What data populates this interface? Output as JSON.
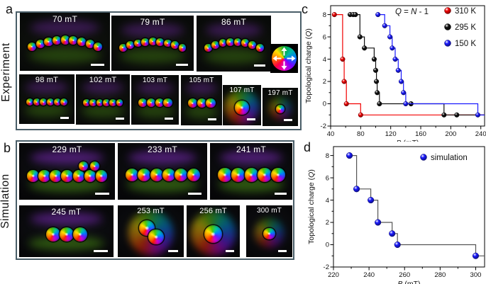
{
  "panels": {
    "a": {
      "letter": "a",
      "side_label": "Experiment",
      "tiles": [
        {
          "field": "70 mT",
          "skyrmions": 9,
          "arrangement": "arc"
        },
        {
          "field": "79 mT",
          "skyrmions": 9,
          "arrangement": "arc"
        },
        {
          "field": "86 mT",
          "skyrmions": 8,
          "arrangement": "arc"
        },
        {
          "field": "98 mT",
          "skyrmions": 6,
          "arrangement": "line"
        },
        {
          "field": "102 mT",
          "skyrmions": 6,
          "arrangement": "line"
        },
        {
          "field": "103 mT",
          "skyrmions": 4,
          "arrangement": "line"
        },
        {
          "field": "105 mT",
          "skyrmions": 3,
          "arrangement": "line"
        },
        {
          "field": "107 mT",
          "skyrmions": 1,
          "arrangement": "single"
        },
        {
          "field": "197 mT",
          "skyrmions": 1,
          "arrangement": "single-small"
        }
      ],
      "color_wheel": {
        "icon": "color-wheel-icon",
        "arrows": [
          "up",
          "right",
          "down",
          "left"
        ]
      }
    },
    "b": {
      "letter": "b",
      "side_label": "Simulation",
      "tiles": [
        {
          "field": "229 mT",
          "skyrmions": 9,
          "arrangement": "line-top2"
        },
        {
          "field": "233 mT",
          "skyrmions": 6,
          "arrangement": "line"
        },
        {
          "field": "241 mT",
          "skyrmions": 5,
          "arrangement": "line"
        },
        {
          "field": "245 mT",
          "skyrmions": 3,
          "arrangement": "line"
        },
        {
          "field": "253 mT",
          "skyrmions": 2,
          "arrangement": "diag"
        },
        {
          "field": "256 mT",
          "skyrmions": 1,
          "arrangement": "single"
        },
        {
          "field": "300 mT",
          "skyrmions": 1,
          "arrangement": "single-small"
        }
      ]
    },
    "c": {
      "letter": "c"
    },
    "d": {
      "letter": "d"
    }
  },
  "chart_data": [
    {
      "id": "c",
      "type": "line",
      "subtype": "step-after",
      "annotation": "Q = N - 1",
      "xlabel": "B (mT)",
      "ylabel": "Topological charge (Q)",
      "xlim": [
        40,
        245
      ],
      "ylim": [
        -2,
        8.8
      ],
      "xticks": [
        40,
        80,
        120,
        160,
        200,
        240
      ],
      "yticks": [
        -2,
        0,
        2,
        4,
        6,
        8
      ],
      "x_minor_step": 20,
      "y_minor_step": 1,
      "grid": false,
      "legend_position": "top-right",
      "series": [
        {
          "name": "310 K",
          "color": "#f20000",
          "points": [
            [
              45,
              8
            ],
            [
              56,
              4
            ],
            [
              58,
              2
            ],
            [
              61,
              0
            ],
            [
              80,
              -1
            ]
          ],
          "extend_to": 245
        },
        {
          "name": "295 K",
          "color": "#111111",
          "points": [
            [
              66,
              8
            ],
            [
              70,
              8
            ],
            [
              73,
              8
            ],
            [
              79,
              6
            ],
            [
              85,
              5
            ],
            [
              98,
              4
            ],
            [
              100,
              3
            ],
            [
              101,
              2
            ],
            [
              102,
              1
            ],
            [
              105,
              0
            ],
            [
              147,
              0
            ],
            [
              191,
              -1
            ],
            [
              208,
              -1
            ]
          ],
          "extend_to": 245
        },
        {
          "name": "150 K",
          "color": "#1a1aff",
          "points": [
            [
              103,
              8
            ],
            [
              112,
              7
            ],
            [
              119,
              6
            ],
            [
              122,
              5
            ],
            [
              126,
              4
            ],
            [
              130,
              3
            ],
            [
              134,
              2
            ],
            [
              137,
              1
            ],
            [
              140,
              0
            ],
            [
              236,
              -1
            ]
          ],
          "extend_to": 245
        }
      ]
    },
    {
      "id": "d",
      "type": "line",
      "subtype": "step-after",
      "annotation": "",
      "xlabel": "B (mT)",
      "ylabel": "Topological charge (Q)",
      "xlim": [
        220,
        305
      ],
      "ylim": [
        -2,
        8.8
      ],
      "xticks": [
        220,
        240,
        260,
        280,
        300
      ],
      "yticks": [
        -2,
        0,
        2,
        4,
        6,
        8
      ],
      "x_minor_step": 10,
      "y_minor_step": 1,
      "grid": false,
      "legend_position": "top-right",
      "series": [
        {
          "name": "simulation",
          "color": "#1a1aff",
          "line_color": "#555555",
          "points": [
            [
              229,
              8
            ],
            [
              233,
              5
            ],
            [
              241,
              4
            ],
            [
              245,
              2
            ],
            [
              253,
              1
            ],
            [
              256,
              0
            ],
            [
              300,
              -1
            ]
          ],
          "extend_to": 305
        }
      ]
    }
  ]
}
